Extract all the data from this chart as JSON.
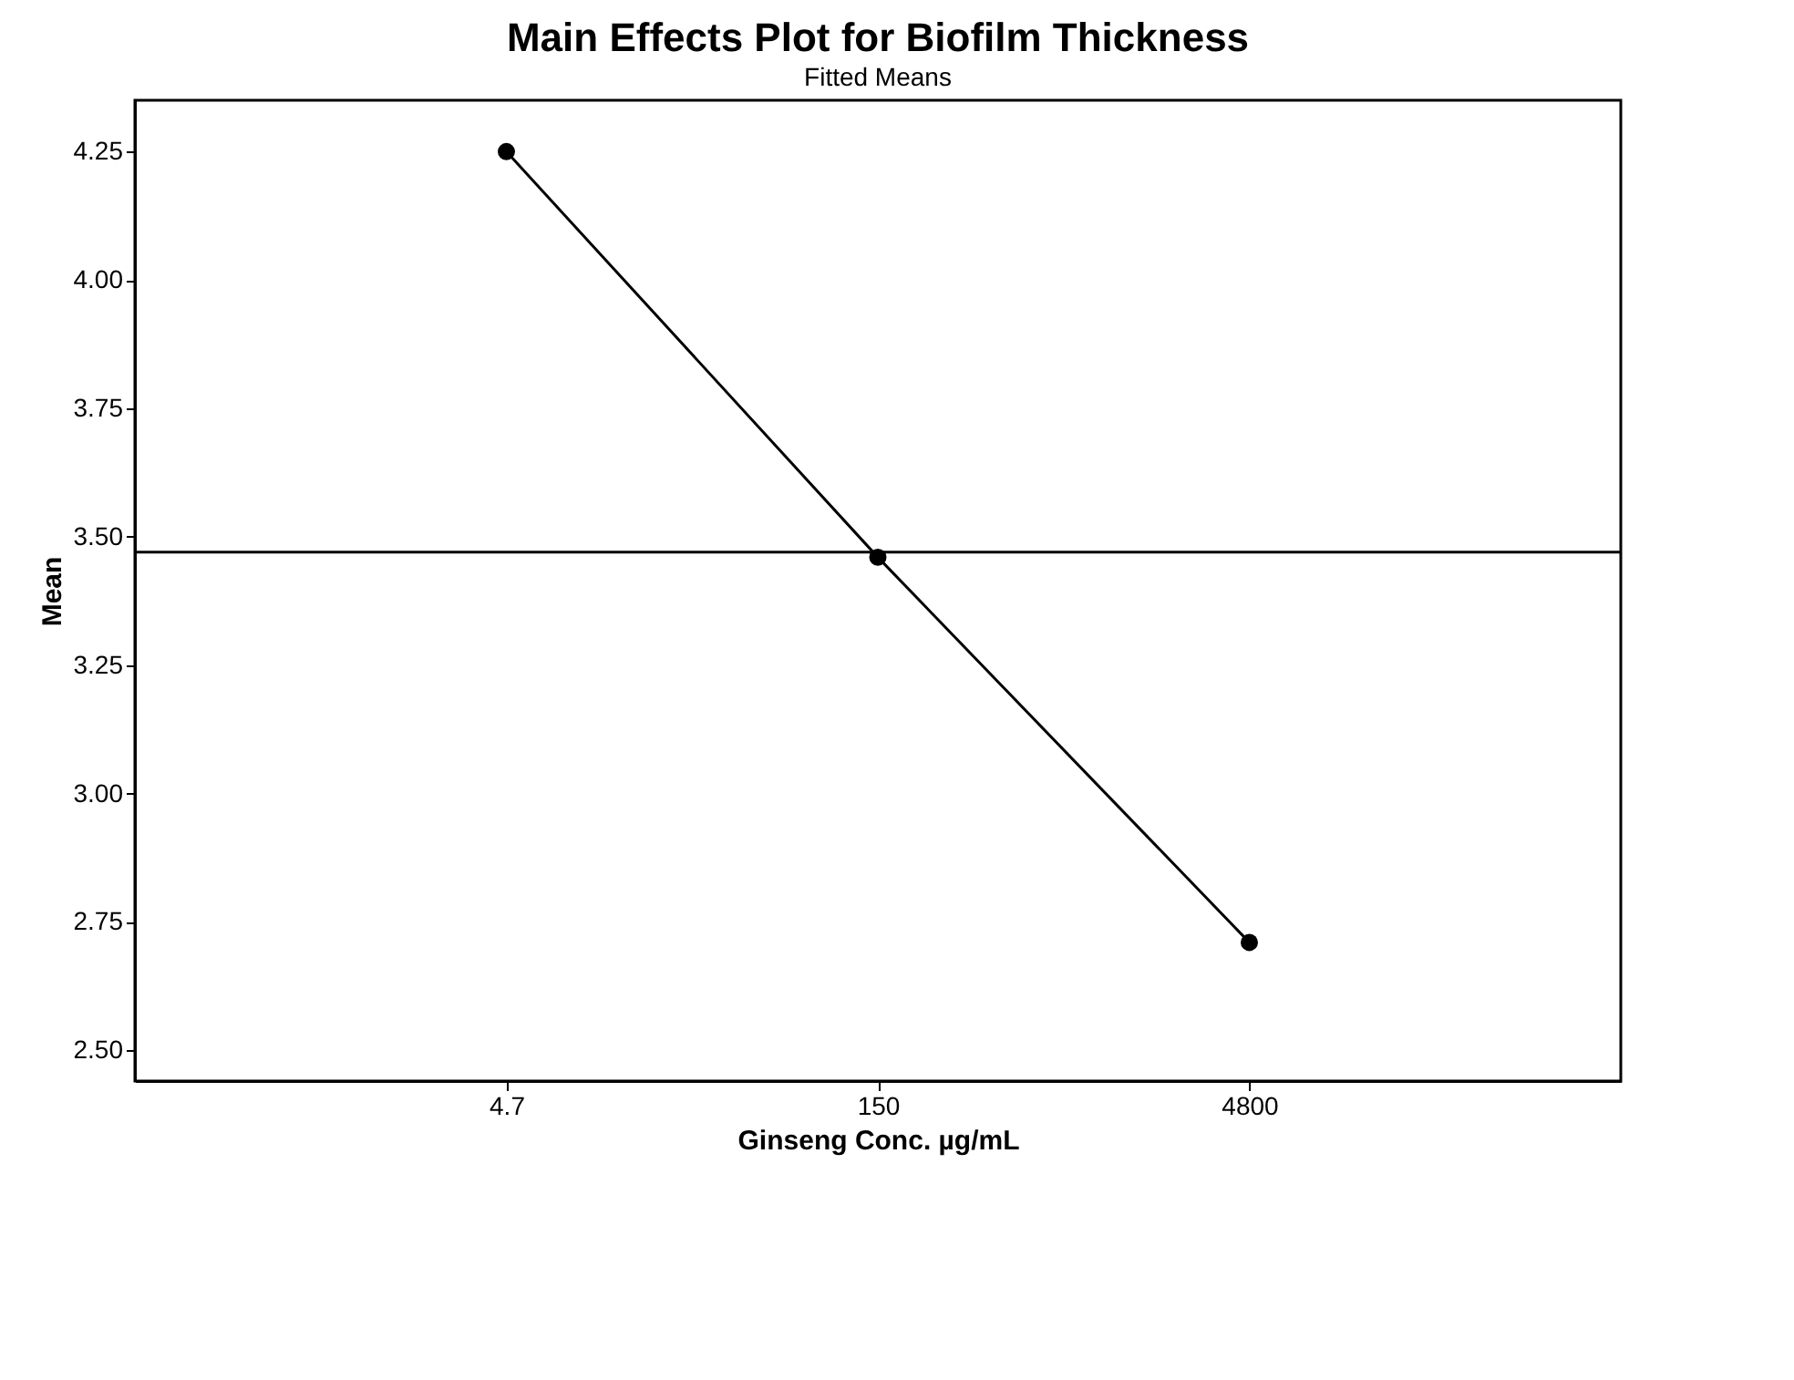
{
  "chart_data": {
    "type": "line",
    "title": "Main Effects Plot for Biofilm Thickness",
    "subtitle": "Fitted Means",
    "xlabel": "Ginseng Conc. µg/mL",
    "ylabel": "Mean",
    "categories": [
      "4.7",
      "150",
      "4800"
    ],
    "series": [
      {
        "color": "#000000",
        "values": [
          4.25,
          3.46,
          2.71
        ]
      }
    ],
    "ylim": [
      2.44,
      4.35
    ],
    "yticks": [
      {
        "value": 2.5,
        "label": "2.50"
      },
      {
        "value": 2.75,
        "label": "2.75"
      },
      {
        "value": 3,
        "label": "3.00"
      },
      {
        "value": 3.25,
        "label": "3.25"
      },
      {
        "value": 3.5,
        "label": "3.50"
      },
      {
        "value": 3.75,
        "label": "3.75"
      },
      {
        "value": 4,
        "label": "4.00"
      },
      {
        "value": 4.25,
        "label": "4.25"
      }
    ],
    "ref_lines": [
      {
        "axis": "y",
        "value": 3.47
      }
    ],
    "marker": "circle",
    "line_style": "solid"
  }
}
